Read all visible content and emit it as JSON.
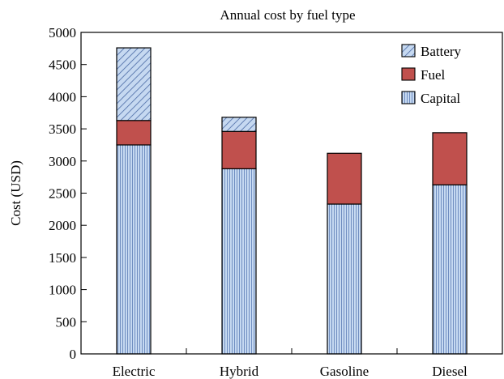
{
  "chart_data": {
    "type": "bar",
    "stacked": true,
    "title": "Annual cost by fuel type",
    "xlabel": "",
    "ylabel": "Cost (USD)",
    "categories": [
      "Electric",
      "Hybrid",
      "Gasoline",
      "Diesel"
    ],
    "series": [
      {
        "name": "Capital",
        "values": [
          3250,
          2880,
          2330,
          2630
        ],
        "color": "#c6d9f1",
        "pattern": "vertical-lines"
      },
      {
        "name": "Fuel",
        "values": [
          380,
          580,
          790,
          810
        ],
        "color": "#c0504d",
        "pattern": "solid"
      },
      {
        "name": "Battery",
        "values": [
          1130,
          220,
          0,
          0
        ],
        "color": "#c6d9f1",
        "pattern": "diagonal-lines"
      }
    ],
    "ylim": [
      0,
      5000
    ],
    "yticks": [
      "0",
      "500",
      "1000",
      "1500",
      "2000",
      "2500",
      "3000",
      "3500",
      "4000",
      "4500",
      "5000"
    ],
    "legend": {
      "position": "top-right",
      "order": [
        "Battery",
        "Fuel",
        "Capital"
      ]
    },
    "grid": false
  }
}
